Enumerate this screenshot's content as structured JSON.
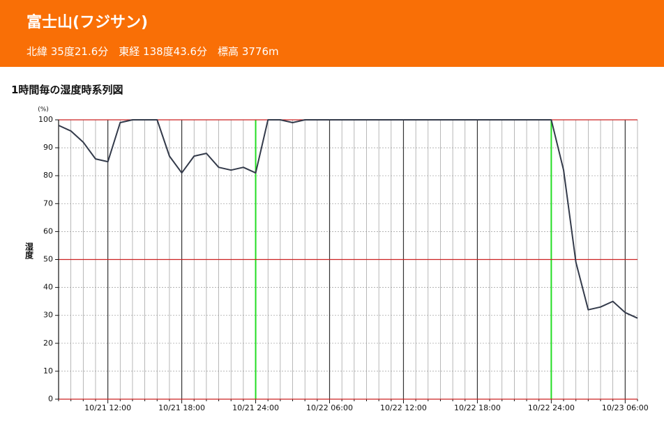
{
  "header": {
    "title": "富士山(フジサン)",
    "subtitle": "北緯 35度21.6分　東経 138度43.6分　標高 3776m"
  },
  "chart_data": {
    "type": "line",
    "title": "1時間毎の湿度時系列図",
    "y_label": "湿度",
    "y_unit": "(%)",
    "categories": [
      null,
      null,
      null,
      null,
      "10/21 12:00",
      null,
      null,
      null,
      null,
      null,
      "10/21 18:00",
      null,
      null,
      null,
      null,
      null,
      "10/21 24:00",
      null,
      null,
      null,
      null,
      null,
      "10/22 06:00",
      null,
      null,
      null,
      null,
      null,
      "10/22 12:00",
      null,
      null,
      null,
      null,
      null,
      "10/22 18:00",
      null,
      null,
      null,
      null,
      null,
      "10/22 24:00",
      null,
      null,
      null,
      null,
      null,
      "10/23 06:00",
      null
    ],
    "series": [
      {
        "name": "湿度",
        "color": "#333a4a",
        "values": [
          98,
          96,
          92,
          86,
          85,
          99,
          100,
          100,
          100,
          87,
          81,
          87,
          88,
          83,
          82,
          83,
          81,
          100,
          100,
          99,
          100,
          100,
          100,
          100,
          100,
          100,
          100,
          100,
          100,
          100,
          100,
          100,
          100,
          100,
          100,
          100,
          100,
          100,
          100,
          100,
          100,
          82,
          49,
          32,
          33,
          35,
          31,
          29
        ]
      }
    ],
    "ylim": [
      0,
      100
    ],
    "yticks": [
      0,
      10,
      20,
      30,
      40,
      50,
      60,
      70,
      80,
      90,
      100
    ],
    "grid": true,
    "grid_color": "#999999",
    "major_line_color": "#333333",
    "midnight_line_color": "#22dd22",
    "reference_lines": [
      0,
      50,
      100
    ],
    "reference_line_color": "#cc2222"
  }
}
